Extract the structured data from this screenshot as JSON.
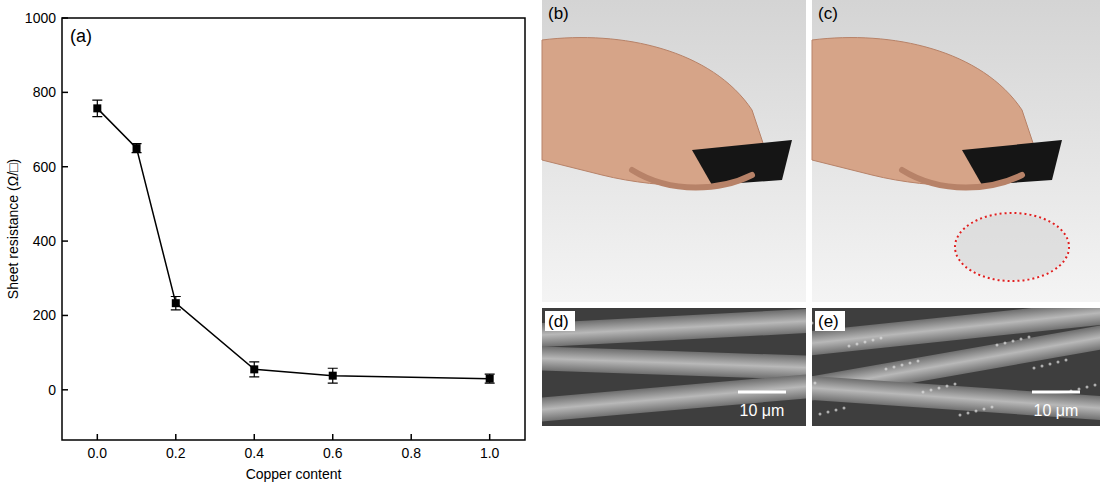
{
  "chart_data": {
    "type": "line",
    "marker": "square",
    "color": "#000000",
    "label": "(a)",
    "x_label": "Copper content",
    "y_label": "Sheet resistance (Ω/□)",
    "x": [
      0,
      0.1,
      0.2,
      0.4,
      0.6,
      1.0
    ],
    "values": [
      757,
      650,
      233,
      55,
      38,
      30
    ],
    "errors": [
      22,
      12,
      18,
      20,
      20,
      12
    ],
    "xlim": [
      -0.09,
      1.09
    ],
    "xticks": [
      {
        "value": 0,
        "label": "0.0"
      },
      0.2,
      0.4,
      0.6,
      0.8,
      {
        "value": 1,
        "label": "1.0"
      }
    ],
    "ylim": [
      -135,
      1000
    ],
    "yticks": [
      0,
      200,
      400,
      600,
      800,
      1000
    ],
    "grid": false
  },
  "photos": [
    {
      "label": "(b)"
    },
    {
      "label": "(c)"
    },
    {
      "label": "(d)",
      "scale_bar": "10 μm"
    },
    {
      "label": "(e)",
      "scale_bar": "10 μm"
    }
  ]
}
